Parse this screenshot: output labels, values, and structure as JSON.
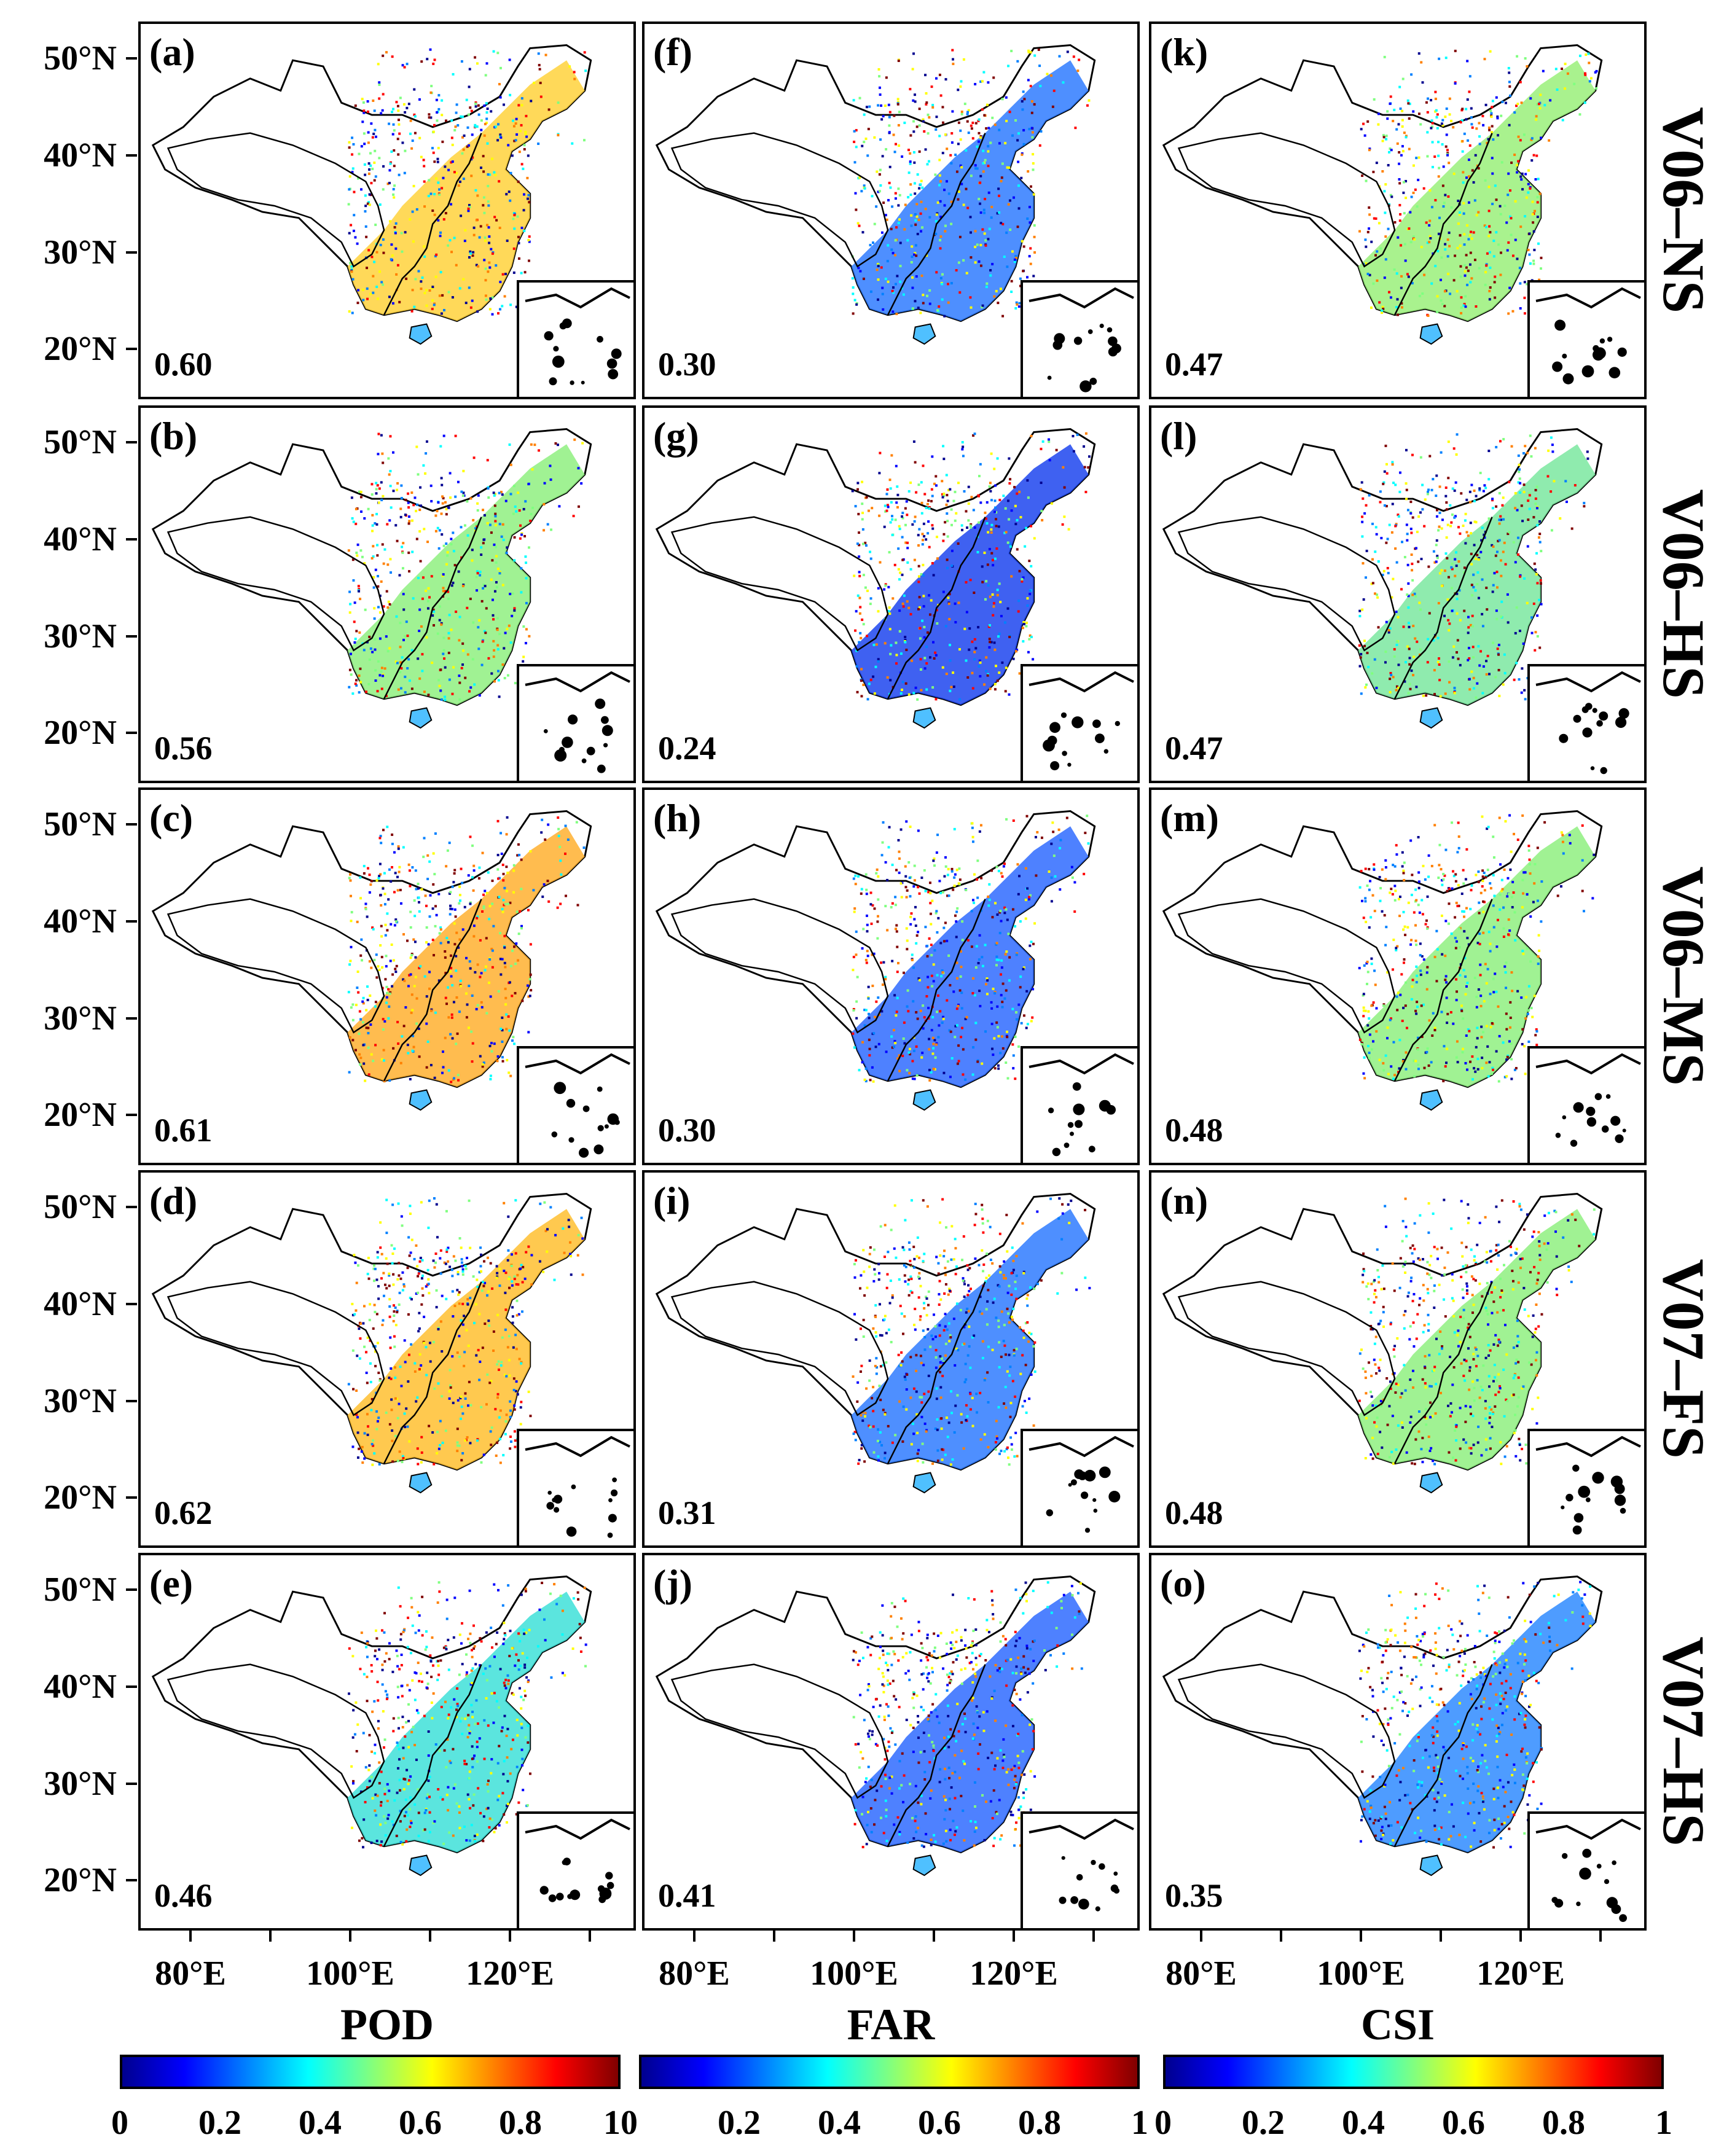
{
  "rows": [
    "V06–NS",
    "V06–HS",
    "V06–MS",
    "V07–FS",
    "V07–HS"
  ],
  "lat_labels": [
    "50°N",
    "40°N",
    "30°N",
    "20°N"
  ],
  "lon_labels": [
    "80°E",
    "100°E",
    "120°E"
  ],
  "columns": [
    {
      "metric": "POD",
      "colorbar_ticks": [
        "0",
        "0.2",
        "0.4",
        "0.6",
        "0.8",
        "10"
      ],
      "panels": [
        {
          "label": "(a)",
          "value": "0.60"
        },
        {
          "label": "(b)",
          "value": "0.56"
        },
        {
          "label": "(c)",
          "value": "0.61"
        },
        {
          "label": "(d)",
          "value": "0.62"
        },
        {
          "label": "(e)",
          "value": "0.46"
        }
      ]
    },
    {
      "metric": "FAR",
      "colorbar_ticks": [
        "",
        "0.2",
        "0.4",
        "0.6",
        "0.8",
        "1"
      ],
      "panels": [
        {
          "label": "(f)",
          "value": "0.30"
        },
        {
          "label": "(g)",
          "value": "0.24"
        },
        {
          "label": "(h)",
          "value": "0.30"
        },
        {
          "label": "(i)",
          "value": "0.31"
        },
        {
          "label": "(j)",
          "value": "0.41"
        }
      ]
    },
    {
      "metric": "CSI",
      "colorbar_ticks": [
        "0",
        "0.2",
        "0.4",
        "0.6",
        "0.8",
        "1"
      ],
      "panels": [
        {
          "label": "(k)",
          "value": "0.47"
        },
        {
          "label": "(l)",
          "value": "0.47"
        },
        {
          "label": "(m)",
          "value": "0.48"
        },
        {
          "label": "(n)",
          "value": "0.48"
        },
        {
          "label": "(o)",
          "value": "0.35"
        }
      ]
    }
  ],
  "colormap": [
    "#00008f",
    "#0000ff",
    "#0080ff",
    "#00ffff",
    "#80ff80",
    "#ffff00",
    "#ff8000",
    "#ff0000",
    "#800000"
  ],
  "style": {
    "fill_colors": [
      [
        "#ffd23c",
        "#2f7bff",
        "#9af07a"
      ],
      [
        "#8ff080",
        "#1d45ee",
        "#7be8a0"
      ],
      [
        "#ffb030",
        "#2f6bff",
        "#8ff080"
      ],
      [
        "#ffc030",
        "#2f7bff",
        "#8ff080"
      ],
      [
        "#3ee0d8",
        "#2f6bff",
        "#2f8bff"
      ]
    ]
  }
}
